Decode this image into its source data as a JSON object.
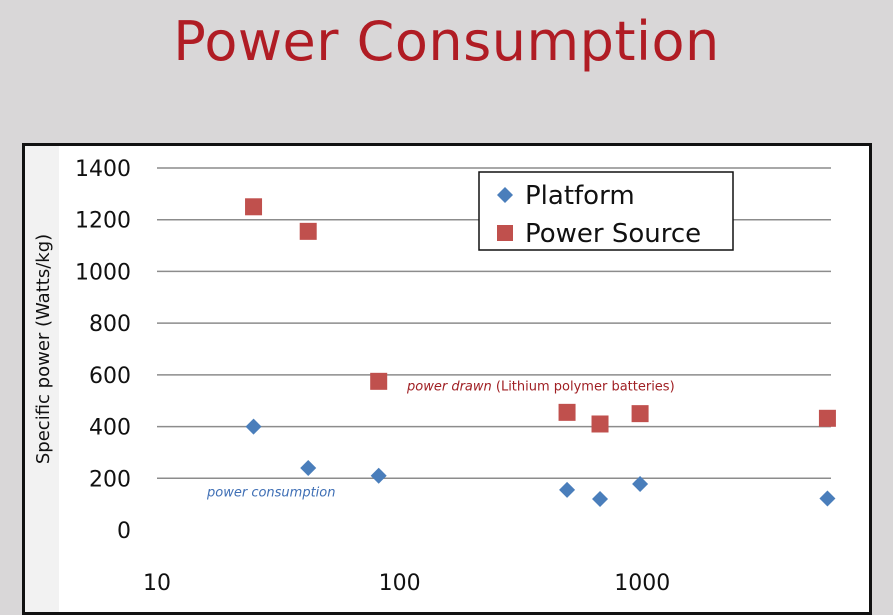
{
  "slide": {
    "title": "Power Consumption"
  },
  "chart_data": {
    "type": "scatter",
    "x_scale": "log",
    "xlim": [
      10,
      6000
    ],
    "ylim": [
      0,
      1400
    ],
    "x_ticks": [
      "10",
      "100",
      "1000"
    ],
    "x_tick_values": [
      10,
      100,
      1000
    ],
    "y_ticks": [
      "0",
      "200",
      "400",
      "600",
      "800",
      "1000",
      "1200",
      "1400"
    ],
    "y_tick_values": [
      0,
      200,
      400,
      600,
      800,
      1000,
      1200,
      1400
    ],
    "ylabel": "Specific power (Watts/kg)",
    "xlabel": "",
    "grid": "horizontal",
    "legend_position": "top-right",
    "series": [
      {
        "name": "Platform",
        "marker": "diamond",
        "color": "#4a7ebb",
        "points": [
          {
            "x": 25,
            "y": 400
          },
          {
            "x": 42,
            "y": 240
          },
          {
            "x": 82,
            "y": 210
          },
          {
            "x": 490,
            "y": 155
          },
          {
            "x": 670,
            "y": 120
          },
          {
            "x": 980,
            "y": 178
          },
          {
            "x": 5800,
            "y": 122
          }
        ]
      },
      {
        "name": "Power Source",
        "marker": "square",
        "color": "#c0504d",
        "points": [
          {
            "x": 25,
            "y": 1250
          },
          {
            "x": 42,
            "y": 1155
          },
          {
            "x": 82,
            "y": 575
          },
          {
            "x": 490,
            "y": 455
          },
          {
            "x": 670,
            "y": 410
          },
          {
            "x": 980,
            "y": 450
          },
          {
            "x": 5800,
            "y": 432
          }
        ]
      }
    ],
    "annotations": {
      "power_drawn_italic": "power drawn",
      "power_drawn_rest": " (Lithium polymer batteries)",
      "power_consumption": "power consumption"
    }
  }
}
